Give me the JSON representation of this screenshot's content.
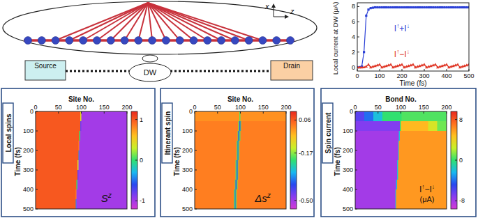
{
  "diagram": {
    "source": "Source",
    "drain": "Drain",
    "dw": "DW",
    "axis_x": "x",
    "axis_z": "z"
  },
  "chart_data": [
    {
      "type": "line",
      "xlabel": "Time (fs)",
      "ylabel": "Local current at DW (μA)",
      "xlim": [
        0,
        500
      ],
      "ylim": [
        -0.5,
        8.5
      ],
      "xticks": [
        0,
        100,
        200,
        300,
        400,
        500
      ],
      "yticks": [
        0,
        2,
        4,
        6,
        8
      ],
      "x": [
        0,
        10,
        20,
        30,
        40,
        50,
        60,
        70,
        80,
        90,
        100,
        110,
        120,
        130,
        140,
        150,
        160,
        170,
        180,
        190,
        200,
        210,
        220,
        230,
        240,
        250,
        260,
        270,
        280,
        290,
        300,
        310,
        320,
        330,
        340,
        350,
        360,
        370,
        380,
        390,
        400,
        410,
        420,
        430,
        440,
        450,
        460,
        470,
        480,
        490,
        500
      ],
      "series": [
        {
          "name": "I↑+I↓",
          "color": "#2a3fd6",
          "marker": "square",
          "values": [
            0,
            0,
            0.1,
            2,
            6.8,
            7.6,
            7.8,
            7.85,
            7.9,
            7.9,
            7.9,
            7.9,
            7.9,
            7.9,
            7.9,
            7.9,
            7.9,
            7.9,
            7.9,
            7.9,
            7.9,
            7.9,
            7.9,
            7.9,
            7.9,
            7.9,
            7.9,
            7.9,
            7.9,
            7.9,
            7.9,
            7.9,
            7.9,
            7.9,
            7.9,
            7.9,
            7.9,
            7.9,
            7.9,
            7.9,
            7.9,
            7.9,
            7.9,
            7.9,
            7.9,
            7.9,
            7.9,
            7.9,
            7.9,
            7.9,
            7.9
          ]
        },
        {
          "name": "I↑−I↓",
          "color": "#e03a2a",
          "marker": "triangle",
          "values": [
            0,
            0,
            0,
            0.02,
            0.1,
            0.35,
            0,
            0.09,
            0.18,
            0.27,
            0.35,
            0,
            0.09,
            0.18,
            0.27,
            0.35,
            0,
            0.09,
            0.18,
            0.27,
            0.35,
            0,
            0.09,
            0.18,
            0.27,
            0.35,
            0,
            0.09,
            0.18,
            0.27,
            0.35,
            0,
            0.09,
            0.18,
            0.27,
            0.35,
            0,
            0.09,
            0.18,
            0.27,
            0.35,
            0,
            0.09,
            0.18,
            0.27,
            0.35,
            0,
            0.09,
            0.18,
            0.27,
            0.35
          ]
        }
      ]
    },
    {
      "type": "heatmap",
      "panel_label": "Local spins",
      "xlabel": "Site No.",
      "ylabel": "Time (fs)",
      "xlim": [
        0,
        200
      ],
      "ylim": [
        0,
        500
      ],
      "xticks": [
        0,
        50,
        100,
        150,
        200
      ],
      "yticks": [
        0,
        100,
        200,
        300,
        400,
        500
      ],
      "x_edges": [
        0,
        20,
        40,
        60,
        80,
        84,
        86,
        88,
        90,
        92,
        94,
        96,
        98,
        100,
        102,
        120,
        140,
        160,
        180,
        200
      ],
      "y_edges": [
        0,
        50,
        100,
        150,
        200,
        250,
        300,
        350,
        400,
        450,
        500
      ],
      "cells": [
        [
          1,
          1,
          1,
          1,
          1,
          1,
          1,
          1,
          1,
          1,
          1,
          1,
          0.4,
          -1,
          -1,
          -1,
          -1,
          -1,
          -1
        ],
        [
          1,
          1,
          1,
          1,
          1,
          1,
          1,
          1,
          1,
          1,
          1,
          1,
          -0.8,
          -1,
          -1,
          -1,
          -1,
          -1,
          -1
        ],
        [
          1,
          1,
          1,
          1,
          1,
          1,
          1,
          1,
          1,
          1,
          1,
          0,
          -1,
          -1,
          -1,
          -1,
          -1,
          -1,
          -1
        ],
        [
          1,
          1,
          1,
          1,
          1,
          1,
          1,
          1,
          1,
          1,
          0.8,
          -1,
          -1,
          -1,
          -1,
          -1,
          -1,
          -1,
          -1
        ],
        [
          1,
          1,
          1,
          1,
          1,
          1,
          1,
          1,
          1,
          1,
          -0.4,
          -1,
          -1,
          -1,
          -1,
          -1,
          -1,
          -1,
          -1
        ],
        [
          1,
          1,
          1,
          1,
          1,
          1,
          1,
          1,
          1,
          0.4,
          -1,
          -1,
          -1,
          -1,
          -1,
          -1,
          -1,
          -1,
          -1
        ],
        [
          1,
          1,
          1,
          1,
          1,
          1,
          1,
          1,
          1,
          -0.8,
          -1,
          -1,
          -1,
          -1,
          -1,
          -1,
          -1,
          -1,
          -1
        ],
        [
          1,
          1,
          1,
          1,
          1,
          1,
          1,
          1,
          0,
          -1,
          -1,
          -1,
          -1,
          -1,
          -1,
          -1,
          -1,
          -1,
          -1
        ],
        [
          1,
          1,
          1,
          1,
          1,
          1,
          1,
          0.8,
          -1,
          -1,
          -1,
          -1,
          -1,
          -1,
          -1,
          -1,
          -1,
          -1,
          -1
        ],
        [
          1,
          1,
          1,
          1,
          1,
          1,
          1,
          -0.4,
          -1,
          -1,
          -1,
          -1,
          -1,
          -1,
          -1,
          -1,
          -1,
          -1,
          -1
        ]
      ],
      "colorbar": {
        "lim": [
          -1.2,
          1.2
        ],
        "ticks": [
          1,
          0,
          -1
        ]
      },
      "annotation": {
        "base": "S",
        "sup": "z"
      }
    },
    {
      "type": "heatmap",
      "panel_label": "Itinerant spin",
      "xlabel": "Site No.",
      "ylabel": "Time (fs)",
      "xlim": [
        0,
        200
      ],
      "ylim": [
        0,
        500
      ],
      "xticks": [
        0,
        50,
        100,
        150,
        200
      ],
      "yticks": [
        0,
        100,
        200,
        300,
        400,
        500
      ],
      "x_edges": [
        0,
        20,
        40,
        60,
        80,
        84,
        86,
        88,
        90,
        92,
        94,
        96,
        98,
        100,
        102,
        120,
        140,
        160,
        180,
        200
      ],
      "y_edges": [
        0,
        50,
        100,
        150,
        200,
        250,
        300,
        350,
        400,
        450,
        500
      ],
      "cells": [
        [
          0,
          0,
          0,
          0,
          0,
          0,
          0,
          0,
          0,
          0,
          0,
          0,
          -0.2,
          0,
          0,
          0,
          0,
          0,
          0
        ],
        [
          0.02,
          0.02,
          0.02,
          0.02,
          0.02,
          0.02,
          0.02,
          0.02,
          0.02,
          0.02,
          0.02,
          -0.2,
          -0.4,
          -0.2,
          0.02,
          0.02,
          0.02,
          0.02,
          0.02
        ],
        [
          0.02,
          0.02,
          0.02,
          0.02,
          0.02,
          0.02,
          0.02,
          0.02,
          0.02,
          0.02,
          -0.2,
          -0.4,
          -0.2,
          0.02,
          0.02,
          0.02,
          0.02,
          0.02,
          0.02
        ],
        [
          0.02,
          0.02,
          0.02,
          0.02,
          0.02,
          0.02,
          0.02,
          0.02,
          0.02,
          -0.2,
          -0.4,
          -0.2,
          0.02,
          0.02,
          0.02,
          0.02,
          0.02,
          0.02,
          0.02
        ],
        [
          0.02,
          0.02,
          0.02,
          0.02,
          0.02,
          0.02,
          0.02,
          0.02,
          0.02,
          -0.2,
          -0.4,
          -0.2,
          0.02,
          0.02,
          0.02,
          0.02,
          0.02,
          0.02,
          0.02
        ],
        [
          0.02,
          0.02,
          0.02,
          0.02,
          0.02,
          0.02,
          0.02,
          0.02,
          -0.2,
          -0.4,
          -0.2,
          0.02,
          0.02,
          0.02,
          0.02,
          0.02,
          0.02,
          0.02,
          0.02
        ],
        [
          0.02,
          0.02,
          0.02,
          0.02,
          0.02,
          0.02,
          0.02,
          0.02,
          -0.2,
          -0.4,
          -0.2,
          0.02,
          0.02,
          0.02,
          0.02,
          0.02,
          0.02,
          0.02,
          0.02
        ],
        [
          0.02,
          0.02,
          0.02,
          0.02,
          0.02,
          0.02,
          0.02,
          -0.2,
          -0.4,
          -0.2,
          0.02,
          0.02,
          0.02,
          0.02,
          0.02,
          0.02,
          0.02,
          0.02,
          0.02
        ],
        [
          0.02,
          0.02,
          0.02,
          0.02,
          0.02,
          0.02,
          -0.2,
          -0.4,
          -0.2,
          0.02,
          0.02,
          0.02,
          0.02,
          0.02,
          0.02,
          0.02,
          0.02,
          0.02,
          0.02
        ],
        [
          0.02,
          0.02,
          0.02,
          0.02,
          0.02,
          0.02,
          -0.2,
          -0.4,
          -0.2,
          0.02,
          0.02,
          0.02,
          0.02,
          0.02,
          0.02,
          0.02,
          0.02,
          0.02,
          0.02
        ]
      ],
      "colorbar": {
        "lim": [
          -0.56,
          0.12
        ],
        "ticks": [
          0.06,
          -0.17,
          {
            "value": -0.5,
            "label": "-0.50"
          }
        ]
      },
      "annotation": {
        "base": "Δs",
        "sup": "z"
      }
    },
    {
      "type": "heatmap",
      "panel_label": "Spin current",
      "xlabel": "Bond No.",
      "ylabel": "Time (fs)",
      "xlim": [
        0,
        200
      ],
      "ylim": [
        0,
        500
      ],
      "xticks": [
        0,
        50,
        100,
        150,
        200
      ],
      "yticks": [
        0,
        100,
        200,
        300,
        400,
        500
      ],
      "x_edges": [
        0,
        20,
        40,
        60,
        80,
        84,
        86,
        88,
        90,
        92,
        94,
        96,
        98,
        100,
        102,
        120,
        140,
        160,
        180,
        200
      ],
      "y_edges": [
        0,
        50,
        100,
        150,
        200,
        250,
        300,
        350,
        400,
        450,
        500
      ],
      "cells": [
        [
          -6,
          -4,
          -2,
          0,
          0,
          0,
          0,
          0,
          0,
          0,
          0,
          0,
          0,
          0,
          0.5,
          0.5,
          0.5,
          0.5,
          0.5
        ],
        [
          -7,
          -7,
          -7,
          -7,
          -7,
          -7,
          -7,
          -7,
          -7,
          -7,
          -7,
          -7,
          0,
          5,
          5,
          5,
          5,
          3,
          1
        ],
        [
          -8,
          -8,
          -8,
          -8,
          -8,
          -8,
          -8,
          -8,
          -8,
          -8,
          -8,
          -2,
          6,
          6,
          6,
          6,
          6,
          6,
          6
        ],
        [
          -8,
          -8,
          -8,
          -8,
          -8,
          -8,
          -8,
          -8,
          -8,
          -8,
          -2,
          6,
          6,
          6,
          6,
          6,
          6,
          6,
          6
        ],
        [
          -8,
          -8,
          -8,
          -8,
          -8,
          -8,
          -8,
          -8,
          -8,
          -8,
          -2,
          6,
          6,
          6,
          6,
          6,
          6,
          6,
          6
        ],
        [
          -8,
          -8,
          -8,
          -8,
          -8,
          -8,
          -8,
          -8,
          -8,
          -2,
          6,
          6,
          6,
          6,
          6,
          6,
          6,
          6,
          6
        ],
        [
          -8,
          -8,
          -8,
          -8,
          -8,
          -8,
          -8,
          -8,
          -8,
          -2,
          6,
          6,
          6,
          6,
          6,
          6,
          6,
          6,
          6
        ],
        [
          -8,
          -8,
          -8,
          -8,
          -8,
          -8,
          -8,
          -8,
          -2,
          6,
          6,
          6,
          6,
          6,
          6,
          6,
          6,
          6,
          6
        ],
        [
          -8,
          -8,
          -8,
          -8,
          -8,
          -8,
          -8,
          -2,
          6,
          6,
          6,
          6,
          6,
          6,
          6,
          6,
          6,
          6,
          6
        ],
        [
          -8,
          -8,
          -8,
          -8,
          -8,
          -8,
          -8,
          -2,
          6,
          6,
          6,
          6,
          6,
          6,
          6,
          6,
          6,
          6,
          6
        ]
      ],
      "colorbar": {
        "lim": [
          -9.6,
          9.6
        ],
        "ticks": [
          8,
          0,
          -8
        ]
      },
      "annotation": {
        "text": "I↑−I↓",
        "unit": "(μA)"
      }
    }
  ]
}
